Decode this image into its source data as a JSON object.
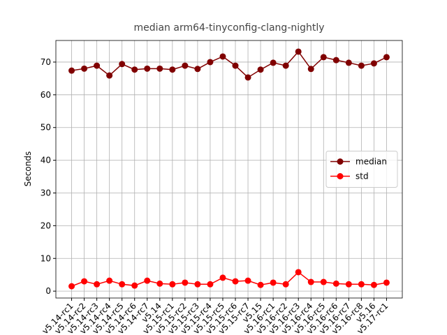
{
  "chart_data": {
    "type": "line",
    "title": "median arm64-tinyconfig-clang-nightly",
    "y_label": "Seconds",
    "categories": [
      "v5.14-rc1",
      "v5.14-rc2",
      "v5.14-rc3",
      "v5.14-rc4",
      "v5.14-rc5",
      "v5.14-rc6",
      "v5.14-rc7",
      "v5.14",
      "v5.15-rc1",
      "v5.15-rc2",
      "v5.15-rc3",
      "v5.15-rc4",
      "v5.15-rc5",
      "v5.15-rc6",
      "v5.15-rc7",
      "v5.15",
      "v5.16-rc1",
      "v5.16-rc2",
      "v5.16-rc3",
      "v5.16-rc4",
      "v5.16-rc5",
      "v5.16-rc6",
      "v5.16-rc7",
      "v5.16-rc8",
      "v5.16",
      "v5.17-rc1"
    ],
    "series": [
      {
        "name": "median",
        "color": "#800000",
        "values": [
          67.4,
          68.0,
          68.9,
          65.9,
          69.4,
          67.7,
          68.0,
          68.0,
          67.7,
          68.9,
          67.9,
          70.0,
          71.7,
          68.9,
          65.3,
          67.7,
          69.8,
          68.9,
          73.2,
          67.9,
          71.5,
          70.6,
          69.8,
          68.9,
          69.6,
          71.5
        ]
      },
      {
        "name": "std",
        "color": "#ff0000",
        "values": [
          1.5,
          3.0,
          2.1,
          3.2,
          2.1,
          1.7,
          3.2,
          2.3,
          2.1,
          2.6,
          2.1,
          2.1,
          4.1,
          3.0,
          3.2,
          1.9,
          2.6,
          2.1,
          5.8,
          2.8,
          2.8,
          2.3,
          2.1,
          2.1,
          1.9,
          2.6
        ]
      }
    ],
    "ylim": [
      -2.1,
      76.6
    ],
    "yticks": [
      0,
      10,
      20,
      30,
      40,
      50,
      60,
      70
    ],
    "grid": true,
    "legend": "center right"
  }
}
